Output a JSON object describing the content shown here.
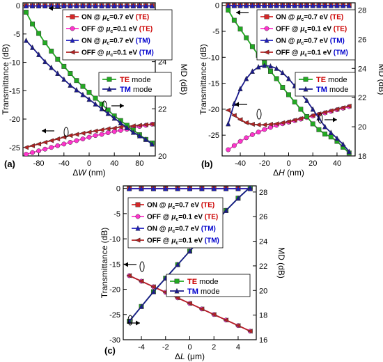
{
  "chart_data": [
    {
      "type": "line",
      "panel_label": "(a)",
      "xlabel": "ΔW (nm)",
      "ylabel": "Transmittance (dB)",
      "y2label": "MD (dB)",
      "xlim": [
        -105,
        105
      ],
      "ylim": [
        -26.5,
        0.5
      ],
      "y2lim": [
        20,
        26.5
      ],
      "xticks": [
        "-80",
        "-40",
        "0",
        "40",
        "80"
      ],
      "yticks": [
        "0",
        "-5",
        "-10",
        "-15",
        "-20",
        "-25"
      ],
      "y2ticks": [
        "20",
        "22",
        "24",
        "26"
      ],
      "x": [
        -100,
        -90,
        -80,
        -70,
        -60,
        -50,
        -40,
        -30,
        -20,
        -10,
        0,
        10,
        20,
        30,
        40,
        50,
        60,
        70,
        80,
        90,
        100
      ],
      "series": [
        {
          "name": "ON @ μc=0.7 eV (TE)",
          "axis": "left",
          "color": "#d62728",
          "marker": "square",
          "values": [
            -0.05,
            -0.05,
            -0.05,
            -0.05,
            -0.05,
            -0.05,
            -0.05,
            -0.05,
            -0.05,
            -0.05,
            -0.05,
            -0.05,
            -0.05,
            -0.05,
            -0.05,
            -0.05,
            -0.05,
            -0.05,
            -0.05,
            -0.05,
            -0.05
          ]
        },
        {
          "name": "OFF @ μc=0.1 eV (TE)",
          "axis": "left",
          "color": "#ff33cc",
          "marker": "circle",
          "values": [
            -26.2,
            -25.9,
            -25.6,
            -25.3,
            -25.0,
            -24.7,
            -24.4,
            -24.1,
            -23.8,
            -23.5,
            -23.2,
            -22.9,
            -22.7,
            -22.4,
            -22.2,
            -22.0,
            -21.8,
            -21.5,
            -21.3,
            -21.1,
            -20.9
          ]
        },
        {
          "name": "ON @ μc=0.7 eV (TM)",
          "axis": "left",
          "color": "#1f1fbf",
          "marker": "triangle-up",
          "values": [
            -0.05,
            -0.05,
            -0.05,
            -0.05,
            -0.05,
            -0.05,
            -0.05,
            -0.05,
            -0.05,
            -0.05,
            -0.05,
            -0.05,
            -0.05,
            -0.05,
            -0.05,
            -0.05,
            -0.05,
            -0.05,
            -0.05,
            -0.05,
            -0.05
          ]
        },
        {
          "name": "OFF @ μc=0.1 eV (TM)",
          "axis": "left",
          "color": "#b22222",
          "marker": "triangle-left",
          "values": [
            -25.0,
            -24.7,
            -24.4,
            -24.1,
            -23.8,
            -23.5,
            -23.2,
            -22.9,
            -22.7,
            -22.5,
            -22.3,
            -22.1,
            -21.9,
            -21.7,
            -21.6,
            -21.4,
            -21.3,
            -21.2,
            -21.1,
            -21.0,
            -20.9
          ]
        },
        {
          "name": "TE mode",
          "axis": "right",
          "color": "#22aa22",
          "marker": "square",
          "values": [
            26.1,
            25.6,
            25.2,
            24.8,
            24.45,
            24.1,
            23.8,
            23.5,
            23.2,
            22.95,
            22.7,
            22.45,
            22.2,
            21.95,
            21.7,
            21.5,
            21.3,
            21.1,
            20.9,
            20.7,
            20.55
          ]
        },
        {
          "name": "TM mode",
          "axis": "right",
          "color": "#1a1a8c",
          "marker": "triangle-up",
          "values": [
            24.9,
            24.6,
            24.3,
            24.0,
            23.75,
            23.5,
            23.25,
            23.0,
            22.8,
            22.6,
            22.4,
            22.2,
            22.0,
            21.8,
            21.6,
            21.4,
            21.2,
            21.0,
            20.85,
            20.7,
            20.5
          ]
        }
      ]
    },
    {
      "type": "line",
      "panel_label": "(b)",
      "xlabel": "ΔH (nm)",
      "ylabel": "Transmittance (dB)",
      "y2label": "MD (dB)",
      "xlim": [
        -55,
        55
      ],
      "ylim": [
        -29,
        0.5
      ],
      "y2lim": [
        18,
        28.5
      ],
      "xticks": [
        "-40",
        "-20",
        "0",
        "20",
        "40"
      ],
      "yticks": [
        "0",
        "-5",
        "-10",
        "-15",
        "-20",
        "-25"
      ],
      "y2ticks": [
        "18",
        "20",
        "22",
        "24",
        "26",
        "28"
      ],
      "x": [
        -50,
        -45,
        -40,
        -35,
        -30,
        -25,
        -20,
        -15,
        -10,
        -5,
        0,
        5,
        10,
        15,
        20,
        25,
        30,
        35,
        40,
        45,
        50
      ],
      "series": [
        {
          "name": "ON @ μc=0.7 eV (TE)",
          "axis": "left",
          "color": "#d62728",
          "marker": "square",
          "values": [
            -0.05,
            -0.05,
            -0.05,
            -0.05,
            -0.05,
            -0.05,
            -0.05,
            -0.05,
            -0.05,
            -0.05,
            -0.05,
            -0.05,
            -0.05,
            -0.05,
            -0.05,
            -0.05,
            -0.05,
            -0.05,
            -0.05,
            -0.05,
            -0.05
          ]
        },
        {
          "name": "OFF @ μc=0.1 eV (TE)",
          "axis": "left",
          "color": "#ff33cc",
          "marker": "circle",
          "values": [
            -27.8,
            -27.0,
            -26.2,
            -25.5,
            -24.9,
            -24.4,
            -23.9,
            -23.5,
            -23.1,
            -22.8,
            -22.5,
            -22.2,
            -21.9,
            -21.6,
            -21.3,
            -21.0,
            -20.7,
            -20.4,
            -20.1,
            -19.8,
            -19.5
          ]
        },
        {
          "name": "ON @ μc=0.7 eV (TM)",
          "axis": "left",
          "color": "#1f1fbf",
          "marker": "triangle-up",
          "values": [
            -0.05,
            -0.05,
            -0.05,
            -0.05,
            -0.05,
            -0.05,
            -0.05,
            -0.05,
            -0.05,
            -0.05,
            -0.05,
            -0.05,
            -0.05,
            -0.05,
            -0.05,
            -0.05,
            -0.05,
            -0.05,
            -0.05,
            -0.05,
            -0.05
          ]
        },
        {
          "name": "OFF @ μc=0.1 eV (TM)",
          "axis": "left",
          "color": "#b22222",
          "marker": "triangle-left",
          "values": [
            -20.2,
            -21.2,
            -22.0,
            -22.6,
            -22.9,
            -23.0,
            -23.0,
            -22.9,
            -22.8,
            -22.6,
            -22.4,
            -22.1,
            -21.8,
            -21.5,
            -21.2,
            -20.9,
            -20.6,
            -20.3,
            -20.0,
            -19.7,
            -19.4
          ]
        },
        {
          "name": "TE mode",
          "axis": "right",
          "color": "#22aa22",
          "marker": "square",
          "values": [
            28.0,
            27.3,
            26.7,
            26.1,
            25.5,
            24.9,
            24.4,
            23.8,
            23.3,
            22.7,
            22.2,
            21.7,
            21.2,
            20.7,
            20.2,
            19.8,
            19.5,
            19.3,
            19.0,
            18.6,
            18.2
          ]
        },
        {
          "name": "TM mode",
          "axis": "right",
          "color": "#1a1a8c",
          "marker": "triangle-up",
          "values": [
            20.2,
            21.6,
            22.6,
            23.3,
            23.8,
            24.1,
            24.2,
            24.15,
            24.0,
            23.7,
            23.3,
            22.8,
            22.3,
            21.8,
            21.2,
            20.6,
            20.0,
            19.6,
            19.2,
            18.8,
            18.3
          ]
        }
      ]
    },
    {
      "type": "line",
      "panel_label": "(c)",
      "xlabel": "ΔL (μm)",
      "ylabel": "Transmittance (dB)",
      "y2label": "MD (dB)",
      "xlim": [
        -5.5,
        5.5
      ],
      "ylim": [
        -30,
        0.5
      ],
      "y2lim": [
        16,
        28.5
      ],
      "xticks": [
        "-4",
        "-2",
        "0",
        "2",
        "4"
      ],
      "yticks": [
        "0",
        "-5",
        "-10",
        "-15",
        "-20",
        "-25",
        "-30"
      ],
      "y2ticks": [
        "16",
        "18",
        "20",
        "22",
        "24",
        "26",
        "28"
      ],
      "x": [
        -5,
        -4,
        -3,
        -2,
        -1,
        0,
        1,
        2,
        3,
        4,
        5
      ],
      "series": [
        {
          "name": "ON @ μc=0.7 eV (TE)",
          "axis": "left",
          "color": "#d62728",
          "marker": "square",
          "values": [
            -0.05,
            -0.05,
            -0.05,
            -0.05,
            -0.05,
            -0.05,
            -0.05,
            -0.05,
            -0.05,
            -0.05,
            -0.05
          ]
        },
        {
          "name": "OFF @ μc=0.1 eV (TE)",
          "axis": "left",
          "color": "#ff33cc",
          "marker": "circle",
          "values": [
            -17.3,
            -18.4,
            -19.5,
            -20.6,
            -21.7,
            -22.8,
            -23.9,
            -25.0,
            -26.1,
            -27.2,
            -28.3
          ]
        },
        {
          "name": "ON @ μc=0.7 eV (TM)",
          "axis": "left",
          "color": "#1f1fbf",
          "marker": "triangle-up",
          "values": [
            -0.05,
            -0.05,
            -0.05,
            -0.05,
            -0.05,
            -0.05,
            -0.05,
            -0.05,
            -0.05,
            -0.05,
            -0.05
          ]
        },
        {
          "name": "OFF @ μc=0.1 eV (TM)",
          "axis": "left",
          "color": "#b22222",
          "marker": "triangle-left",
          "values": [
            -17.3,
            -18.4,
            -19.5,
            -20.6,
            -21.7,
            -22.8,
            -23.9,
            -25.0,
            -26.1,
            -27.2,
            -28.3
          ]
        },
        {
          "name": "TE mode",
          "axis": "right",
          "color": "#22aa22",
          "marker": "square",
          "values": [
            17.5,
            18.7,
            19.9,
            21.0,
            22.1,
            23.2,
            24.3,
            25.4,
            26.5,
            27.5,
            28.4
          ]
        },
        {
          "name": "TM mode",
          "axis": "right",
          "color": "#1a1a8c",
          "marker": "triangle-up",
          "values": [
            17.5,
            18.7,
            19.9,
            21.0,
            22.1,
            23.2,
            24.3,
            25.4,
            26.5,
            27.5,
            28.4
          ]
        }
      ]
    }
  ],
  "legend_text": {
    "on_te": {
      "pre": "ON @ ",
      "mu": "μ",
      "sub": "c",
      "post": "=0.7 eV ",
      "tag": "(TE)"
    },
    "off_te": {
      "pre": "OFF @ ",
      "mu": "μ",
      "sub": "c",
      "post": "=0.1 eV ",
      "tag": "(TE)"
    },
    "on_tm": {
      "pre": "ON @ ",
      "mu": "μ",
      "sub": "c",
      "post": "=0.7 eV ",
      "tag": "(TM)"
    },
    "off_tm": {
      "pre": "OFF @ ",
      "mu": "μ",
      "sub": "c",
      "post": "=0.1 eV ",
      "tag": "(TM)"
    },
    "te_mode": {
      "tag": "TE",
      "rest": " mode"
    },
    "tm_mode": {
      "tag": "TM",
      "rest": " mode"
    }
  },
  "axis_text": {
    "a": {
      "delta": "Δ",
      "var": "W",
      "unit": " (nm)"
    },
    "b": {
      "delta": "Δ",
      "var": "H",
      "unit": " (nm)"
    },
    "c": {
      "delta": "Δ",
      "var": "L",
      "unit": " (μm)"
    }
  },
  "colors": {
    "te_tag": "#cc0000",
    "tm_tag": "#0000cc",
    "axis": "#000000"
  }
}
